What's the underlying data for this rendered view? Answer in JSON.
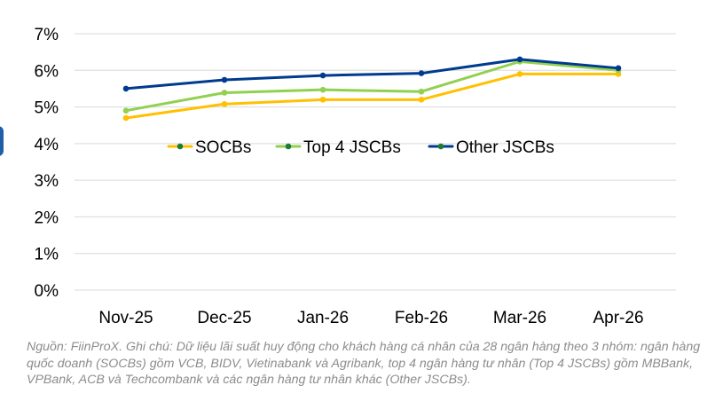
{
  "chart_data": {
    "type": "line",
    "categories": [
      "Nov-25",
      "Dec-25",
      "Jan-26",
      "Feb-26",
      "Mar-26",
      "Apr-26"
    ],
    "series": [
      {
        "name": "SOCBs",
        "color": "#FFC000",
        "values": [
          4.7,
          5.08,
          5.2,
          5.2,
          5.9,
          5.9
        ]
      },
      {
        "name": "Top 4 JSCBs",
        "color": "#92D050",
        "values": [
          4.9,
          5.39,
          5.47,
          5.42,
          6.24,
          6.0
        ]
      },
      {
        "name": "Other JSCBs",
        "color": "#003B8F",
        "values": [
          5.5,
          5.74,
          5.86,
          5.92,
          6.3,
          6.06
        ]
      }
    ],
    "marker_color": "#1E7B34",
    "yticks": [
      "0%",
      "1%",
      "2%",
      "3%",
      "4%",
      "5%",
      "6%",
      "7%"
    ],
    "ylim": [
      0,
      7
    ],
    "grid": true,
    "legend": "center, inside plot"
  },
  "note": "Nguồn: FiinProX. Ghi chú: Dữ liệu lãi suất huy động cho khách hàng cá nhân của 28 ngân hàng theo 3 nhóm: ngân hàng quốc doanh (SOCBs) gồm VCB, BIDV, Vietinabank và Agribank, top 4 ngân hàng tư nhân (Top 4 JSCBs) gồm MBBank, VPBank, ACB và Techcombank và các ngân hàng tư nhân khác (Other JSCBs)."
}
